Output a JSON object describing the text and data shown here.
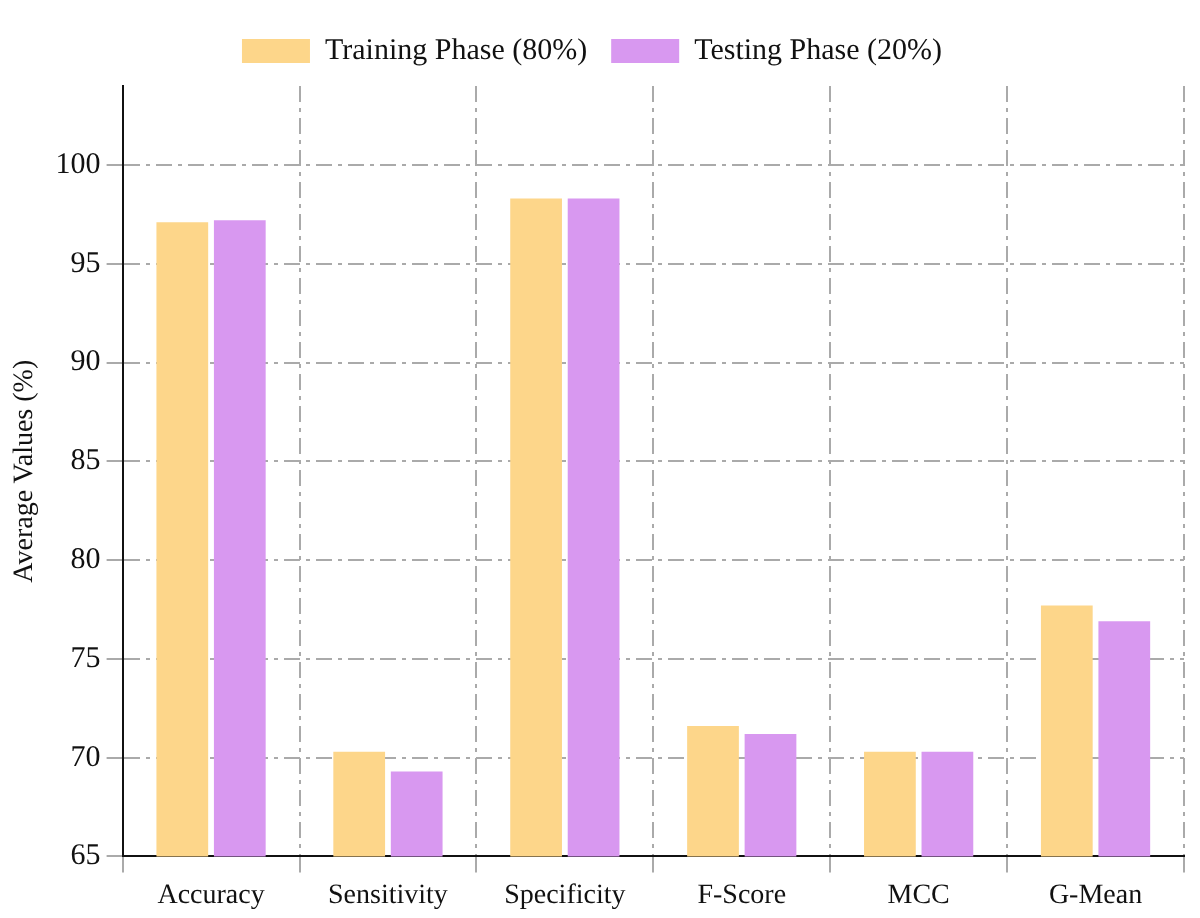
{
  "chart_data": {
    "type": "bar",
    "ylabel": "Average Values (%)",
    "categories": [
      "Accuracy",
      "Sensitivity",
      "Specificity",
      "F-Score",
      "MCC",
      "G-Mean"
    ],
    "series": [
      {
        "name": "Training Phase (80%)",
        "color": "#fdd68a",
        "values": [
          97.1,
          70.3,
          98.3,
          71.6,
          70.3,
          77.7
        ]
      },
      {
        "name": "Testing Phase (20%)",
        "color": "#d898f0",
        "values": [
          97.2,
          69.3,
          98.3,
          71.2,
          70.3,
          76.9
        ]
      }
    ],
    "ylim": [
      65,
      104
    ],
    "yticks": [
      65,
      70,
      75,
      80,
      85,
      90,
      95,
      100
    ],
    "grid": true,
    "legend": "top"
  }
}
